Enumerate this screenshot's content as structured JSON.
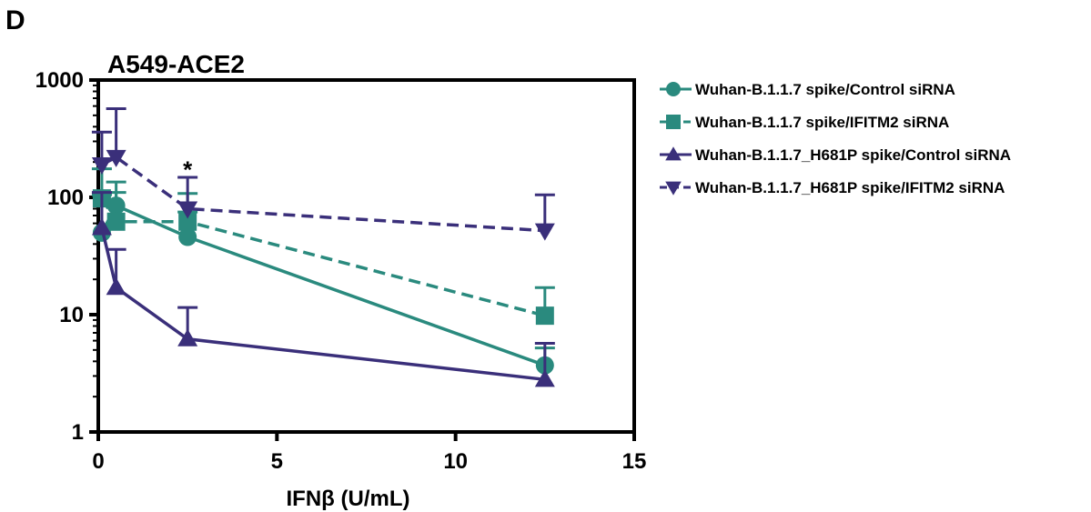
{
  "panel_label": "D",
  "chart_data": {
    "type": "line",
    "title": "A549-ACE2",
    "xlabel": "IFNβ (U/mL)",
    "ylabel": "",
    "xlim": [
      0,
      15
    ],
    "ylim": [
      1,
      1000
    ],
    "yscale": "log",
    "xticks": [
      0,
      5,
      10,
      15
    ],
    "yticks": [
      1,
      10,
      100,
      1000
    ],
    "xtick_labels": [
      "0",
      "5",
      "10",
      "15"
    ],
    "ytick_labels": [
      "1",
      "10",
      "100",
      "1000"
    ],
    "grid": false,
    "legend_position": "right",
    "annotations": [
      {
        "text": "*",
        "x": 2.5,
        "y": 175
      }
    ],
    "series": [
      {
        "name": "Wuhan-B.1.1.7 spike/Control siRNA",
        "color": "#2a8a7e",
        "marker": "circle",
        "dash": "solid",
        "x": [
          0.1,
          0.5,
          2.5,
          12.5
        ],
        "y": [
          50,
          85,
          46,
          3.7
        ],
        "err_up": [
          105,
          135,
          75,
          5.2
        ]
      },
      {
        "name": "Wuhan-B.1.1.7 spike/IFITM2 siRNA",
        "color": "#2a8a7e",
        "marker": "square",
        "dash": "dashed",
        "x": [
          0.1,
          0.5,
          2.5,
          12.5
        ],
        "y": [
          98,
          62,
          62,
          9.8
        ],
        "err_up": [
          175,
          110,
          108,
          17
        ]
      },
      {
        "name": "Wuhan-B.1.1.7_H681P spike/Control siRNA",
        "color": "#3a2f7a",
        "marker": "triangle-up",
        "dash": "solid",
        "x": [
          0.1,
          0.5,
          2.5,
          12.5
        ],
        "y": [
          55,
          17,
          6.2,
          2.8
        ],
        "err_up": [
          110,
          36,
          11.5,
          5.7
        ]
      },
      {
        "name": "Wuhan-B.1.1.7_H681P spike/IFITM2 siRNA",
        "color": "#3a2f7a",
        "marker": "triangle-down",
        "dash": "dashed",
        "x": [
          0.1,
          0.5,
          2.5,
          12.5
        ],
        "y": [
          190,
          220,
          80,
          52
        ],
        "err_up": [
          360,
          570,
          148,
          105
        ]
      }
    ]
  }
}
